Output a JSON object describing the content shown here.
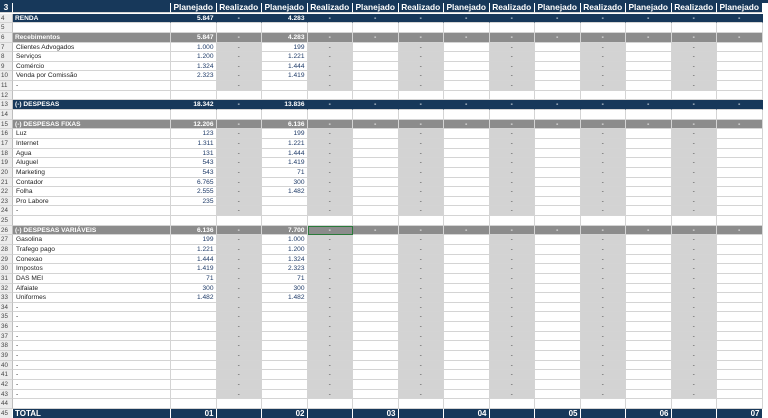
{
  "header": {
    "row_number": "3",
    "columns": [
      "Planejado",
      "Realizado",
      "Planejado",
      "Realizado",
      "Planejado",
      "Realizado",
      "Planejado",
      "Realizado",
      "Planejado",
      "Realizado",
      "Planejado",
      "Realizado",
      "Planejado"
    ]
  },
  "dash": "-",
  "rows": [
    {
      "n": "4",
      "type": "band",
      "label": "RENDA",
      "values": [
        "5.847",
        "-",
        "4.283",
        "-",
        "-",
        "-",
        "-",
        "-",
        "-",
        "-",
        "-",
        "-",
        "-"
      ]
    },
    {
      "n": "5",
      "type": "empty",
      "label": "",
      "values": [
        "",
        "",
        "",
        "",
        "",
        "",
        "",
        "",
        "",
        "",
        "",
        "",
        ""
      ]
    },
    {
      "n": "6",
      "type": "gband",
      "label": "Recebimentos",
      "values": [
        "5.847",
        "-",
        "4.283",
        "-",
        "-",
        "-",
        "-",
        "-",
        "-",
        "-",
        "-",
        "-",
        "-"
      ]
    },
    {
      "n": "7",
      "type": "item",
      "label": "Clientes Advogados",
      "values": [
        "1.000",
        "-",
        "199",
        "-",
        "",
        "-",
        "",
        "-",
        "",
        "-",
        "",
        "-",
        ""
      ]
    },
    {
      "n": "8",
      "type": "item",
      "label": "Serviços",
      "values": [
        "1.200",
        "-",
        "1.221",
        "-",
        "",
        "-",
        "",
        "-",
        "",
        "-",
        "",
        "-",
        ""
      ]
    },
    {
      "n": "9",
      "type": "item",
      "label": "Comércio",
      "values": [
        "1.324",
        "-",
        "1.444",
        "-",
        "",
        "-",
        "",
        "-",
        "",
        "-",
        "",
        "-",
        ""
      ]
    },
    {
      "n": "10",
      "type": "item",
      "label": "Venda por Comissão",
      "values": [
        "2.323",
        "-",
        "1.419",
        "-",
        "",
        "-",
        "",
        "-",
        "",
        "-",
        "",
        "-",
        ""
      ]
    },
    {
      "n": "11",
      "type": "item",
      "label": "-",
      "values": [
        "",
        "-",
        "",
        "-",
        "",
        "-",
        "",
        "-",
        "",
        "-",
        "",
        "-",
        ""
      ]
    },
    {
      "n": "12",
      "type": "empty",
      "label": "",
      "values": [
        "",
        "",
        "",
        "",
        "",
        "",
        "",
        "",
        "",
        "",
        "",
        "",
        ""
      ]
    },
    {
      "n": "13",
      "type": "band",
      "label": "(-) DESPESAS",
      "values": [
        "18.342",
        "-",
        "13.836",
        "-",
        "-",
        "-",
        "-",
        "-",
        "-",
        "-",
        "-",
        "-",
        "-"
      ]
    },
    {
      "n": "14",
      "type": "empty",
      "label": "",
      "values": [
        "",
        "",
        "",
        "",
        "",
        "",
        "",
        "",
        "",
        "",
        "",
        "",
        ""
      ]
    },
    {
      "n": "15",
      "type": "gband",
      "label": "(-) DESPESAS FIXAS",
      "values": [
        "12.206",
        "-",
        "6.136",
        "-",
        "-",
        "-",
        "-",
        "-",
        "-",
        "-",
        "-",
        "-",
        "-"
      ]
    },
    {
      "n": "16",
      "type": "item",
      "label": "Luz",
      "values": [
        "123",
        "-",
        "199",
        "-",
        "",
        "-",
        "",
        "-",
        "",
        "-",
        "",
        "-",
        ""
      ]
    },
    {
      "n": "17",
      "type": "item",
      "label": "Internet",
      "values": [
        "1.311",
        "-",
        "1.221",
        "-",
        "",
        "-",
        "",
        "-",
        "",
        "-",
        "",
        "-",
        ""
      ]
    },
    {
      "n": "18",
      "type": "item",
      "label": "Agua",
      "values": [
        "131",
        "-",
        "1.444",
        "-",
        "",
        "-",
        "",
        "-",
        "",
        "-",
        "",
        "-",
        ""
      ]
    },
    {
      "n": "19",
      "type": "item",
      "label": "Aluguel",
      "values": [
        "543",
        "-",
        "1.419",
        "-",
        "",
        "-",
        "",
        "-",
        "",
        "-",
        "",
        "-",
        ""
      ]
    },
    {
      "n": "20",
      "type": "item",
      "label": "Marketing",
      "values": [
        "543",
        "-",
        "71",
        "-",
        "",
        "-",
        "",
        "-",
        "",
        "-",
        "",
        "-",
        ""
      ]
    },
    {
      "n": "21",
      "type": "item",
      "label": "Contador",
      "values": [
        "6.765",
        "-",
        "300",
        "-",
        "",
        "-",
        "",
        "-",
        "",
        "-",
        "",
        "-",
        ""
      ]
    },
    {
      "n": "22",
      "type": "item",
      "label": "Folha",
      "values": [
        "2.555",
        "-",
        "1.482",
        "-",
        "",
        "-",
        "",
        "-",
        "",
        "-",
        "",
        "-",
        ""
      ]
    },
    {
      "n": "23",
      "type": "item",
      "label": "Pro Labore",
      "values": [
        "235",
        "-",
        "",
        "-",
        "",
        "-",
        "",
        "-",
        "",
        "-",
        "",
        "-",
        ""
      ]
    },
    {
      "n": "24",
      "type": "item",
      "label": "-",
      "values": [
        "",
        "-",
        "",
        "-",
        "",
        "-",
        "",
        "-",
        "",
        "-",
        "",
        "-",
        ""
      ]
    },
    {
      "n": "25",
      "type": "empty",
      "label": "",
      "values": [
        "",
        "",
        "",
        "",
        "",
        "",
        "",
        "",
        "",
        "",
        "",
        "",
        ""
      ]
    },
    {
      "n": "26",
      "type": "gband",
      "label": "(-) DESPESAS VARIÁVEIS",
      "values": [
        "6.136",
        "-",
        "7.700",
        "-",
        "-",
        "-",
        "-",
        "-",
        "-",
        "-",
        "-",
        "-",
        "-"
      ]
    },
    {
      "n": "27",
      "type": "item",
      "label": "Gasolina",
      "values": [
        "199",
        "-",
        "1.000",
        "-",
        "",
        "-",
        "",
        "-",
        "",
        "-",
        "",
        "-",
        ""
      ]
    },
    {
      "n": "28",
      "type": "item",
      "label": "Trafego pago",
      "values": [
        "1.221",
        "-",
        "1.200",
        "-",
        "",
        "-",
        "",
        "-",
        "",
        "-",
        "",
        "-",
        ""
      ]
    },
    {
      "n": "29",
      "type": "item",
      "label": "Conexao",
      "values": [
        "1.444",
        "-",
        "1.324",
        "-",
        "",
        "-",
        "",
        "-",
        "",
        "-",
        "",
        "-",
        ""
      ]
    },
    {
      "n": "30",
      "type": "item",
      "label": "Impostos",
      "values": [
        "1.419",
        "-",
        "2.323",
        "-",
        "",
        "-",
        "",
        "-",
        "",
        "-",
        "",
        "-",
        ""
      ]
    },
    {
      "n": "31",
      "type": "item",
      "label": "DAS MEI",
      "values": [
        "71",
        "-",
        "71",
        "-",
        "",
        "-",
        "",
        "-",
        "",
        "-",
        "",
        "-",
        ""
      ]
    },
    {
      "n": "32",
      "type": "item",
      "label": "Alfaiate",
      "values": [
        "300",
        "-",
        "300",
        "-",
        "",
        "-",
        "",
        "-",
        "",
        "-",
        "",
        "-",
        ""
      ]
    },
    {
      "n": "33",
      "type": "item",
      "label": "Uniformes",
      "values": [
        "1.482",
        "-",
        "1.482",
        "-",
        "",
        "-",
        "",
        "-",
        "",
        "-",
        "",
        "-",
        ""
      ]
    },
    {
      "n": "34",
      "type": "item",
      "label": "-",
      "values": [
        "",
        "-",
        "",
        "-",
        "",
        "-",
        "",
        "-",
        "",
        "-",
        "",
        "-",
        ""
      ]
    },
    {
      "n": "35",
      "type": "item",
      "label": "-",
      "values": [
        "",
        "-",
        "",
        "-",
        "",
        "-",
        "",
        "-",
        "",
        "-",
        "",
        "-",
        ""
      ]
    },
    {
      "n": "36",
      "type": "item",
      "label": "-",
      "values": [
        "",
        "-",
        "",
        "-",
        "",
        "-",
        "",
        "-",
        "",
        "-",
        "",
        "-",
        ""
      ]
    },
    {
      "n": "37",
      "type": "item",
      "label": "-",
      "values": [
        "",
        "-",
        "",
        "-",
        "",
        "-",
        "",
        "-",
        "",
        "-",
        "",
        "-",
        ""
      ]
    },
    {
      "n": "38",
      "type": "item",
      "label": "-",
      "values": [
        "",
        "-",
        "",
        "-",
        "",
        "-",
        "",
        "-",
        "",
        "-",
        "",
        "-",
        ""
      ]
    },
    {
      "n": "39",
      "type": "item",
      "label": "-",
      "values": [
        "",
        "-",
        "",
        "-",
        "",
        "-",
        "",
        "-",
        "",
        "-",
        "",
        "-",
        ""
      ]
    },
    {
      "n": "40",
      "type": "item",
      "label": "-",
      "values": [
        "",
        "-",
        "",
        "-",
        "",
        "-",
        "",
        "-",
        "",
        "-",
        "",
        "-",
        ""
      ]
    },
    {
      "n": "41",
      "type": "item",
      "label": "-",
      "values": [
        "",
        "-",
        "",
        "-",
        "",
        "-",
        "",
        "-",
        "",
        "-",
        "",
        "-",
        ""
      ]
    },
    {
      "n": "42",
      "type": "item",
      "label": "-",
      "values": [
        "",
        "-",
        "",
        "-",
        "",
        "-",
        "",
        "-",
        "",
        "-",
        "",
        "-",
        ""
      ]
    },
    {
      "n": "43",
      "type": "item",
      "label": "-",
      "values": [
        "",
        "-",
        "",
        "-",
        "",
        "-",
        "",
        "-",
        "",
        "-",
        "",
        "-",
        ""
      ]
    },
    {
      "n": "44",
      "type": "empty",
      "label": "",
      "values": [
        "",
        "",
        "",
        "",
        "",
        "",
        "",
        "",
        "",
        "",
        "",
        "",
        ""
      ]
    }
  ],
  "total": {
    "n": "45",
    "label": "TOTAL",
    "values": [
      "01",
      "",
      "02",
      "",
      "03",
      "",
      "04",
      "",
      "05",
      "",
      "06",
      "",
      "07"
    ]
  },
  "selected_cell": {
    "row": "26",
    "column_index": 3
  }
}
